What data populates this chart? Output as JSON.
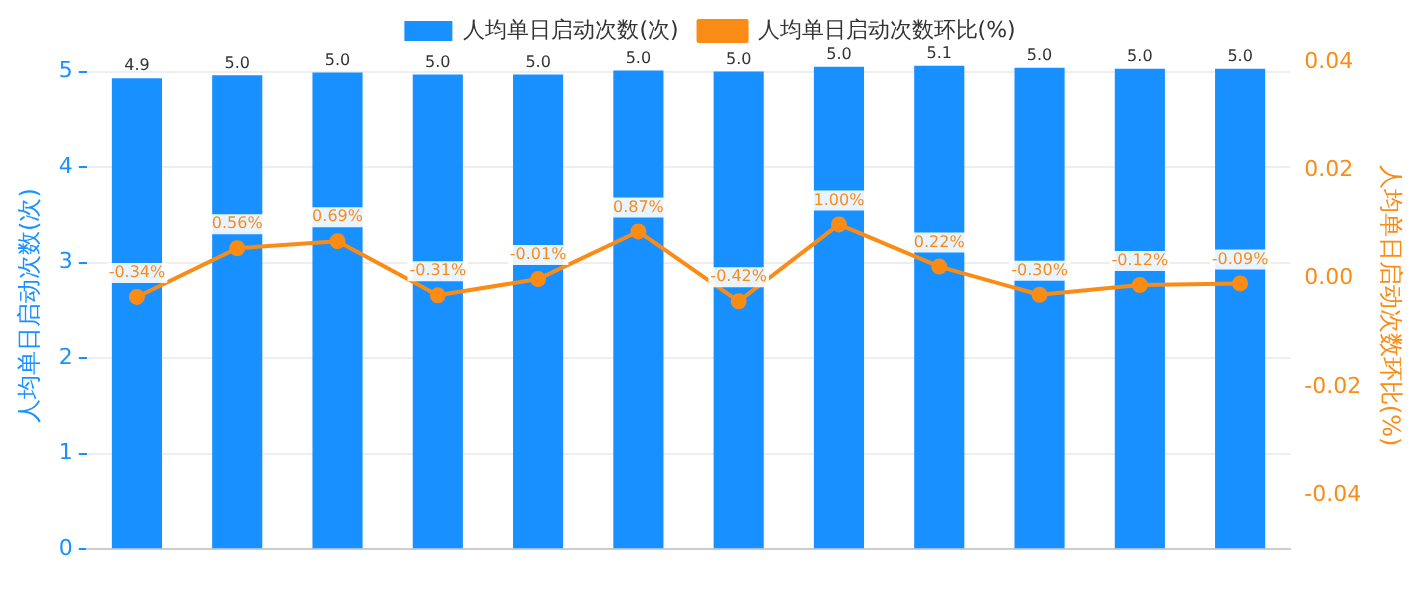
{
  "chart_data": {
    "type": "bar",
    "categories": [
      null,
      null,
      null,
      null,
      null,
      null,
      null,
      null,
      null,
      null,
      null,
      null
    ],
    "series": [
      {
        "name": "人均单日启动次数(次)",
        "color": "#1890ff",
        "values": [
          4.93,
          4.96,
          4.99,
          4.97,
          4.97,
          5.01,
          5.0,
          5.05,
          5.06,
          5.04,
          5.03,
          5.03
        ],
        "value_labels": [
          "4.9",
          "5.0",
          "5.0",
          "5.0",
          "5.0",
          "5.0",
          "5.0",
          "5.0",
          "5.1",
          "5.0",
          "5.0",
          "5.0"
        ]
      },
      {
        "name": "人均单日启动次数环比(%)",
        "type": "line",
        "axis": "y2",
        "color": "#fa8c16",
        "marker": "circle",
        "values": [
          -0.0034,
          0.0056,
          0.0069,
          -0.0031,
          -0.0001,
          0.0087,
          -0.0042,
          0.01,
          0.0022,
          -0.003,
          -0.0012,
          -0.0009
        ],
        "value_labels": [
          "-0.34%",
          "0.56%",
          "0.69%",
          "-0.31%",
          "-0.01%",
          "0.87%",
          "-0.42%",
          "1.00%",
          "0.22%",
          "-0.30%",
          "-0.12%",
          "-0.09%"
        ]
      }
    ],
    "ylabel": "人均单日启动次数(次)",
    "y2label": "人均单日启动次数环比(%)",
    "ylim": [
      0,
      5.1
    ],
    "yticks": [
      0,
      1,
      2,
      3,
      4,
      5
    ],
    "y2lim": [
      -0.05,
      0.04
    ],
    "y2ticks": [
      {
        "value": -0.04,
        "label": "-0.04"
      },
      {
        "value": -0.02,
        "label": "-0.02"
      },
      {
        "value": 0,
        "label": "0.00"
      },
      {
        "value": 0.02,
        "label": "0.02"
      },
      {
        "value": 0.04,
        "label": "0.04"
      }
    ],
    "grid": "y",
    "legend": "top"
  }
}
